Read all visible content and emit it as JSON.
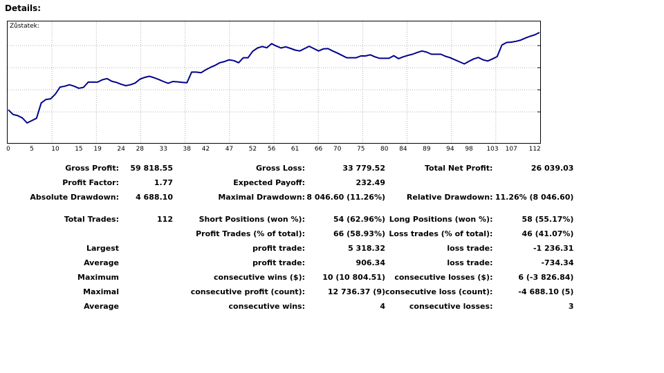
{
  "header": {
    "title": "Details:"
  },
  "chart_data": {
    "type": "line",
    "title": "Zůstatek:",
    "xlabel": "",
    "ylabel": "",
    "x_tick_labels": [
      "0",
      "5",
      "10",
      "15",
      "19",
      "24",
      "28",
      "33",
      "38",
      "42",
      "47",
      "52",
      "56",
      "61",
      "66",
      "70",
      "75",
      "80",
      "84",
      "89",
      "94",
      "98",
      "103",
      "107",
      "112"
    ],
    "x_range": [
      0,
      113
    ],
    "grid": true,
    "series": [
      {
        "color": "#00008b",
        "x": [
          0,
          1,
          2,
          3,
          4,
          5,
          6,
          7,
          8,
          9,
          10,
          11,
          12,
          13,
          14,
          15,
          16,
          17,
          18,
          19,
          20,
          21,
          22,
          23,
          24,
          25,
          26,
          27,
          28,
          29,
          30,
          31,
          32,
          33,
          34,
          35,
          36,
          37,
          38,
          39,
          40,
          41,
          42,
          43,
          44,
          45,
          46,
          47,
          48,
          49,
          50,
          51,
          52,
          53,
          54,
          55,
          56,
          57,
          58,
          59,
          60,
          61,
          62,
          63,
          64,
          65,
          66,
          67,
          68,
          69,
          70,
          71,
          72,
          73,
          74,
          75,
          76,
          77,
          78,
          79,
          80,
          81,
          82,
          83,
          84,
          85,
          86,
          87,
          88,
          89,
          90,
          91,
          92,
          93,
          94,
          95,
          96,
          97,
          98,
          99,
          100,
          101,
          102,
          103,
          104,
          105,
          106,
          107,
          108,
          109,
          110,
          111,
          112,
          113
        ],
        "y": [
          33300,
          31700,
          31300,
          30500,
          28800,
          29600,
          30400,
          35600,
          36800,
          37000,
          38600,
          41000,
          41300,
          41800,
          41300,
          40600,
          40900,
          42700,
          42700,
          42700,
          43500,
          43900,
          43000,
          42600,
          42000,
          41500,
          41800,
          42400,
          43700,
          44300,
          44700,
          44200,
          43600,
          42900,
          42300,
          42900,
          42800,
          42600,
          42500,
          46100,
          46100,
          45900,
          46900,
          47700,
          48400,
          49300,
          49700,
          50300,
          50000,
          49300,
          51000,
          51000,
          53200,
          54300,
          54800,
          54400,
          55800,
          55000,
          54300,
          54700,
          54200,
          53600,
          53300,
          54100,
          54900,
          54100,
          53300,
          54000,
          54100,
          53300,
          52600,
          51800,
          51000,
          51000,
          51000,
          51600,
          51600,
          52000,
          51300,
          50800,
          50800,
          50800,
          51700,
          50700,
          51300,
          51800,
          52200,
          52800,
          53300,
          52900,
          52200,
          52200,
          52200,
          51500,
          51000,
          50300,
          49600,
          48900,
          49800,
          50600,
          51100,
          50300,
          49900,
          50600,
          51400,
          55300,
          56200,
          56300,
          56600,
          57000,
          57700,
          58300,
          58800,
          59600
        ]
      }
    ]
  },
  "stats": {
    "rows": [
      [
        "Gross Profit:",
        "59 818.55",
        "Gross Loss:",
        "33 779.52",
        "Total Net Profit:",
        "26 039.03"
      ],
      [
        "Profit Factor:",
        "1.77",
        "Expected Payoff:",
        "232.49",
        "",
        ""
      ],
      [
        "Absolute Drawdown:",
        "4 688.10",
        "Maximal Drawdown:",
        "8 046.60 (11.26%)",
        "Relative Drawdown:",
        "11.26% (8 046.60)"
      ],
      [
        "Total Trades:",
        "112",
        "Short Positions (won %):",
        "54 (62.96%)",
        "Long Positions (won %):",
        "58 (55.17%)"
      ],
      [
        "",
        "",
        "Profit Trades (% of total):",
        "66 (58.93%)",
        "Loss trades (% of total):",
        "46 (41.07%)"
      ],
      [
        "Largest",
        "",
        "profit trade:",
        "5 318.32",
        "loss trade:",
        "-1 236.31"
      ],
      [
        "Average",
        "",
        "profit trade:",
        "906.34",
        "loss trade:",
        "-734.34"
      ],
      [
        "Maximum",
        "",
        "consecutive wins ($):",
        "10 (10 804.51)",
        "consecutive losses ($):",
        "6 (-3 826.84)"
      ],
      [
        "Maximal",
        "",
        "consecutive profit (count):",
        "12 736.37 (9)",
        "consecutive loss (count):",
        "-4 688.10 (5)"
      ],
      [
        "Average",
        "",
        "consecutive wins:",
        "4",
        "consecutive losses:",
        "3"
      ]
    ]
  }
}
